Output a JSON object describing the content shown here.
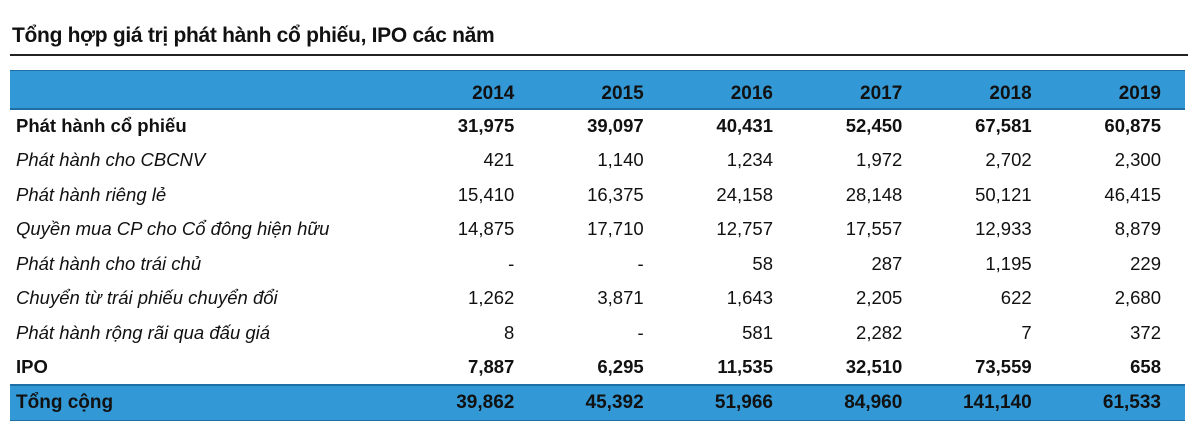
{
  "title": "Tổng hợp giá trị phát hành cổ phiếu, IPO các năm",
  "table": {
    "columns": [
      "",
      "2014",
      "2015",
      "2016",
      "2017",
      "2018",
      "2019"
    ],
    "rows": [
      {
        "label": "Phát hành cổ phiếu",
        "values": [
          "31,975",
          "39,097",
          "40,431",
          "52,450",
          "67,581",
          "60,875"
        ]
      },
      {
        "label": "Phát hành cho CBCNV",
        "values": [
          "421",
          "1,140",
          "1,234",
          "1,972",
          "2,702",
          "2,300"
        ]
      },
      {
        "label": "Phát hành riêng lẻ",
        "values": [
          "15,410",
          "16,375",
          "24,158",
          "28,148",
          "50,121",
          "46,415"
        ]
      },
      {
        "label": "Quyền mua CP cho Cổ đông hiện hữu",
        "values": [
          "14,875",
          "17,710",
          "12,757",
          "17,557",
          "12,933",
          "8,879"
        ]
      },
      {
        "label": "Phát hành cho trái chủ",
        "values": [
          "-",
          "-",
          "58",
          "287",
          "1,195",
          "229"
        ]
      },
      {
        "label": "Chuyển từ trái phiếu chuyển đổi",
        "values": [
          "1,262",
          "3,871",
          "1,643",
          "2,205",
          "622",
          "2,680"
        ]
      },
      {
        "label": "Phát hành rộng rãi qua đấu giá",
        "values": [
          "8",
          "-",
          "581",
          "2,282",
          "7",
          "372"
        ]
      },
      {
        "label": "IPO",
        "values": [
          "7,887",
          "6,295",
          "11,535",
          "32,510",
          "73,559",
          "658"
        ]
      }
    ],
    "total": {
      "label": "Tổng cộng",
      "values": [
        "39,862",
        "45,392",
        "51,966",
        "84,960",
        "141,140",
        "61,533"
      ]
    }
  },
  "colors": {
    "header_fill": "#3399d6",
    "header_border": "#1f6fa6",
    "text": "#111111"
  }
}
